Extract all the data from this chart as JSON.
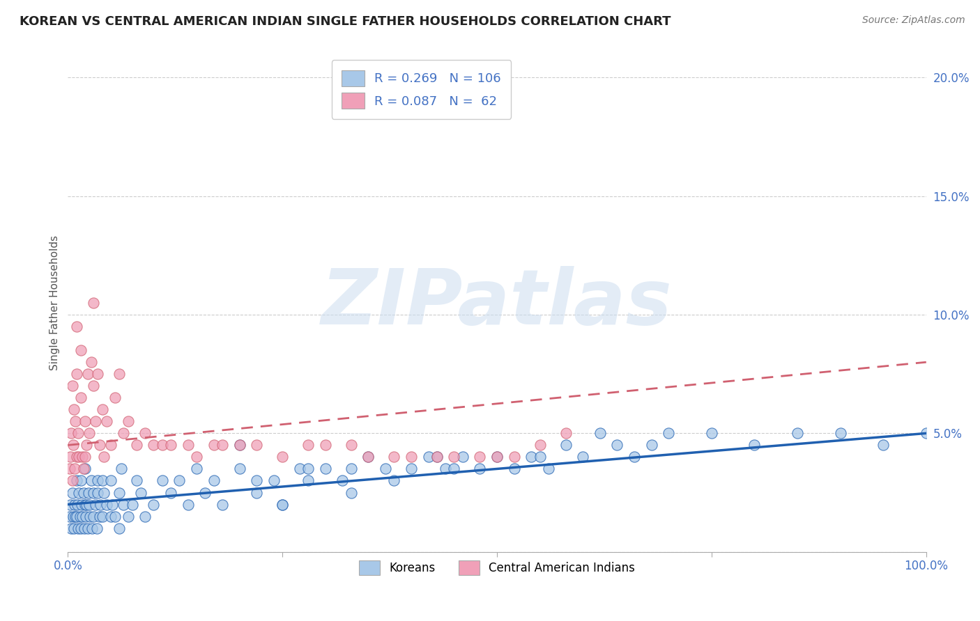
{
  "title": "KOREAN VS CENTRAL AMERICAN INDIAN SINGLE FATHER HOUSEHOLDS CORRELATION CHART",
  "source": "Source: ZipAtlas.com",
  "ylabel": "Single Father Households",
  "xlim": [
    0,
    100
  ],
  "ylim": [
    0,
    21
  ],
  "color_korean": "#a8c8e8",
  "color_central": "#f0a0b8",
  "color_korean_line": "#2060b0",
  "color_central_line": "#d06070",
  "color_blue_text": "#4472c4",
  "background_color": "#ffffff",
  "grid_color": "#cccccc",
  "r_korean": "0.269",
  "n_korean": "106",
  "r_central": "0.087",
  "n_central": "62",
  "legend1_label": "Koreans",
  "legend2_label": "Central American Indians",
  "korean_x": [
    0.2,
    0.3,
    0.4,
    0.5,
    0.6,
    0.7,
    0.8,
    0.9,
    1.0,
    1.0,
    1.1,
    1.2,
    1.3,
    1.4,
    1.5,
    1.5,
    1.6,
    1.7,
    1.8,
    1.9,
    2.0,
    2.0,
    2.1,
    2.2,
    2.3,
    2.4,
    2.5,
    2.6,
    2.7,
    2.8,
    3.0,
    3.0,
    3.2,
    3.4,
    3.5,
    3.5,
    3.7,
    3.8,
    4.0,
    4.0,
    4.2,
    4.5,
    5.0,
    5.0,
    5.2,
    5.5,
    6.0,
    6.0,
    6.2,
    6.5,
    7.0,
    7.5,
    8.0,
    8.5,
    9.0,
    10.0,
    11.0,
    12.0,
    13.0,
    14.0,
    15.0,
    16.0,
    17.0,
    18.0,
    20.0,
    22.0,
    24.0,
    25.0,
    27.0,
    28.0,
    30.0,
    32.0,
    33.0,
    35.0,
    37.0,
    38.0,
    40.0,
    42.0,
    44.0,
    46.0,
    48.0,
    50.0,
    52.0,
    54.0,
    56.0,
    58.0,
    60.0,
    62.0,
    64.0,
    66.0,
    68.0,
    70.0,
    75.0,
    80.0,
    85.0,
    90.0,
    95.0,
    100.0,
    55.0,
    45.0,
    43.0,
    33.0,
    28.0,
    25.0,
    22.0,
    20.0
  ],
  "korean_y": [
    1.5,
    2.0,
    1.0,
    2.5,
    1.5,
    1.0,
    2.0,
    1.5,
    3.0,
    1.5,
    2.0,
    1.0,
    2.5,
    1.5,
    1.0,
    3.0,
    2.0,
    1.5,
    2.5,
    1.0,
    2.0,
    3.5,
    1.5,
    2.0,
    1.0,
    2.5,
    2.0,
    1.5,
    3.0,
    1.0,
    2.5,
    1.5,
    2.0,
    1.0,
    3.0,
    2.5,
    1.5,
    2.0,
    3.0,
    1.5,
    2.5,
    2.0,
    1.5,
    3.0,
    2.0,
    1.5,
    2.5,
    1.0,
    3.5,
    2.0,
    1.5,
    2.0,
    3.0,
    2.5,
    1.5,
    2.0,
    3.0,
    2.5,
    3.0,
    2.0,
    3.5,
    2.5,
    3.0,
    2.0,
    3.5,
    2.5,
    3.0,
    2.0,
    3.5,
    3.0,
    3.5,
    3.0,
    3.5,
    4.0,
    3.5,
    3.0,
    3.5,
    4.0,
    3.5,
    4.0,
    3.5,
    4.0,
    3.5,
    4.0,
    3.5,
    4.5,
    4.0,
    5.0,
    4.5,
    4.0,
    4.5,
    5.0,
    5.0,
    4.5,
    5.0,
    5.0,
    4.5,
    5.0,
    4.0,
    3.5,
    4.0,
    2.5,
    3.5,
    2.0,
    3.0,
    4.5
  ],
  "central_x": [
    0.2,
    0.3,
    0.4,
    0.5,
    0.5,
    0.6,
    0.7,
    0.8,
    0.9,
    1.0,
    1.0,
    1.0,
    1.2,
    1.3,
    1.5,
    1.5,
    1.7,
    1.8,
    2.0,
    2.0,
    2.2,
    2.3,
    2.5,
    2.7,
    3.0,
    3.0,
    3.2,
    3.5,
    3.7,
    4.0,
    4.2,
    4.5,
    5.0,
    5.5,
    6.0,
    6.5,
    7.0,
    8.0,
    9.0,
    10.0,
    11.0,
    12.0,
    14.0,
    15.0,
    17.0,
    18.0,
    20.0,
    22.0,
    25.0,
    28.0,
    30.0,
    33.0,
    35.0,
    38.0,
    40.0,
    43.0,
    45.0,
    48.0,
    50.0,
    52.0,
    55.0,
    58.0
  ],
  "central_y": [
    3.5,
    4.0,
    5.0,
    3.0,
    7.0,
    4.5,
    6.0,
    3.5,
    5.5,
    4.0,
    7.5,
    9.5,
    5.0,
    4.0,
    8.5,
    6.5,
    4.0,
    3.5,
    5.5,
    4.0,
    4.5,
    7.5,
    5.0,
    8.0,
    10.5,
    7.0,
    5.5,
    7.5,
    4.5,
    6.0,
    4.0,
    5.5,
    4.5,
    6.5,
    7.5,
    5.0,
    5.5,
    4.5,
    5.0,
    4.5,
    4.5,
    4.5,
    4.5,
    4.0,
    4.5,
    4.5,
    4.5,
    4.5,
    4.0,
    4.5,
    4.5,
    4.5,
    4.0,
    4.0,
    4.0,
    4.0,
    4.0,
    4.0,
    4.0,
    4.0,
    4.5,
    5.0
  ]
}
